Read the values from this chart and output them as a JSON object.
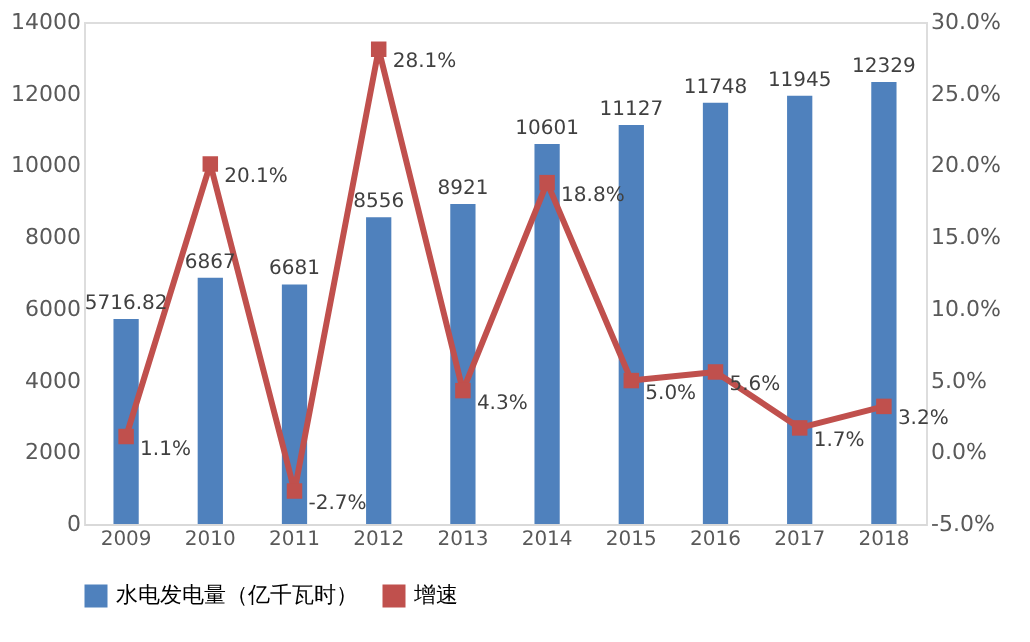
{
  "chart_data": {
    "type": "bar",
    "categories": [
      "2009",
      "2010",
      "2011",
      "2012",
      "2013",
      "2014",
      "2015",
      "2016",
      "2017",
      "2018"
    ],
    "series": [
      {
        "name": "水电发电量（亿千瓦时）",
        "color": "#4f81bd",
        "values": [
          5716.82,
          6867,
          6681,
          8556,
          8921,
          10601,
          11127,
          11748,
          11945,
          12329
        ]
      },
      {
        "name": "增速",
        "type": "line",
        "axis": "y2",
        "color": "#c0504d",
        "marker": "square",
        "values": [
          1.1,
          20.1,
          -2.7,
          28.1,
          4.3,
          18.8,
          5.0,
          5.6,
          1.7,
          3.2
        ],
        "value_labels": [
          "1.1%",
          "20.1%",
          "-2.7%",
          "28.1%",
          "4.3%",
          "18.8%",
          "5.0%",
          "5.6%",
          "1.7%",
          "3.2%"
        ]
      }
    ],
    "data_labels": true,
    "ylim": [
      0,
      14000
    ],
    "yticks": [
      0,
      2000,
      4000,
      6000,
      8000,
      10000,
      12000,
      14000
    ],
    "y2lim": [
      -5,
      30
    ],
    "y2ticks": [
      {
        "value": -5,
        "label": "-5.0%"
      },
      {
        "value": 0,
        "label": "0.0%"
      },
      {
        "value": 5,
        "label": "5.0%"
      },
      {
        "value": 10,
        "label": "10.0%"
      },
      {
        "value": 15,
        "label": "15.0%"
      },
      {
        "value": 20,
        "label": "20.0%"
      },
      {
        "value": 25,
        "label": "25.0%"
      },
      {
        "value": 30,
        "label": "30.0%"
      }
    ],
    "grid": false,
    "legend": "bottom"
  }
}
